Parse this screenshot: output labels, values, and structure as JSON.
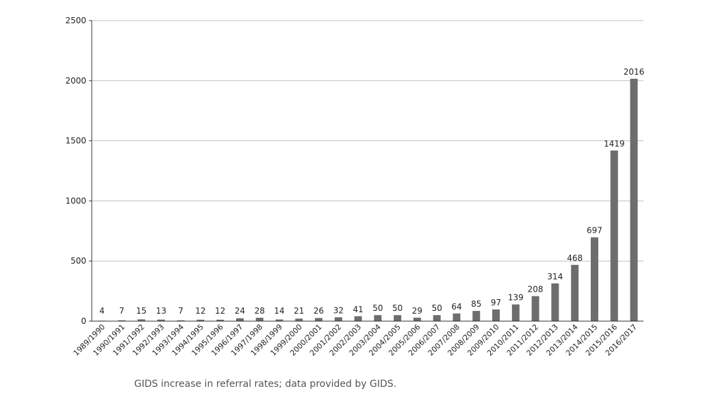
{
  "chart_data": {
    "type": "bar",
    "categories": [
      "1989/1990",
      "1990/1991",
      "1991/1992",
      "1992/1993",
      "1993/1994",
      "1994/1995",
      "1995/1996",
      "1996/1997",
      "1997/1998",
      "1998/1999",
      "1999/2000",
      "2000/2001",
      "2001/2002",
      "2002/2003",
      "2003/2004",
      "2004/2005",
      "2005/2006",
      "2006/2007",
      "2007/2008",
      "2008/2009",
      "2009/2010",
      "2010/2011",
      "2011/2012",
      "2012/2013",
      "2013/2014",
      "2014/2015",
      "2015/2016",
      "2016/2017"
    ],
    "values": [
      4,
      7,
      15,
      13,
      7,
      12,
      12,
      24,
      28,
      14,
      21,
      26,
      32,
      41,
      50,
      50,
      29,
      50,
      64,
      85,
      97,
      139,
      208,
      314,
      468,
      697,
      1419,
      2016
    ],
    "yticks": [
      0,
      500,
      1000,
      1500,
      2000,
      2500
    ],
    "ylim": [
      0,
      2500
    ],
    "grid": true,
    "bar_color": "#6d6d6d",
    "gridline_color": "#bfbfbf",
    "xlabel": "",
    "ylabel": ""
  },
  "caption": "GIDS increase in referral rates; data provided by GIDS."
}
